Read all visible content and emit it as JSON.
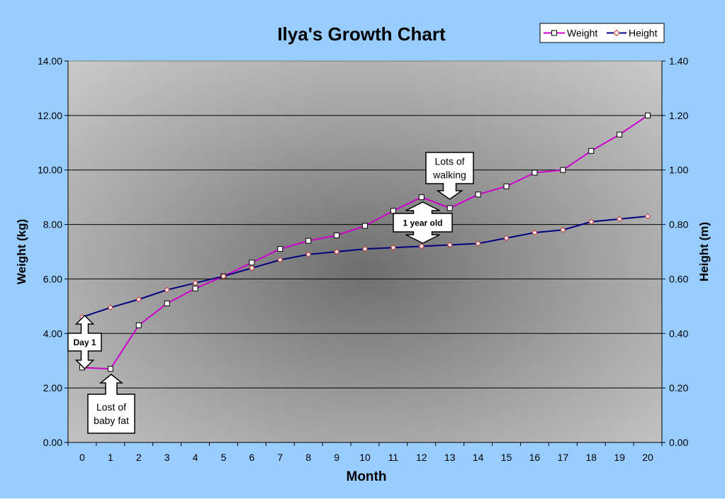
{
  "chart_data": {
    "type": "line",
    "title": "Ilya's Growth Chart",
    "xlabel": "Month",
    "ylabel": "Weight (kg)",
    "y2label": "Height (m)",
    "x": [
      0,
      1,
      2,
      3,
      4,
      5,
      6,
      7,
      8,
      9,
      10,
      11,
      12,
      13,
      14,
      15,
      16,
      17,
      18,
      19,
      20
    ],
    "ylim": [
      0,
      14
    ],
    "y2lim": [
      0,
      1.4
    ],
    "yticks": [
      "0.00",
      "2.00",
      "4.00",
      "6.00",
      "8.00",
      "10.00",
      "12.00",
      "14.00"
    ],
    "y2ticks": [
      "0.00",
      "0.20",
      "0.40",
      "0.60",
      "0.80",
      "1.00",
      "1.20",
      "1.40"
    ],
    "grid": true,
    "legend_position": "top-right",
    "series": [
      {
        "name": "Weight",
        "axis": "left",
        "color": "#cc00cc",
        "marker": "square",
        "values": [
          2.75,
          2.7,
          4.3,
          5.1,
          5.65,
          6.1,
          6.6,
          7.1,
          7.4,
          7.6,
          7.95,
          8.5,
          9.0,
          8.6,
          9.1,
          9.4,
          9.9,
          10.0,
          10.7,
          11.3,
          12.0
        ]
      },
      {
        "name": "Height",
        "axis": "right",
        "color": "#000080",
        "marker": "diamond",
        "values": [
          0.46,
          0.495,
          0.525,
          0.56,
          0.585,
          0.61,
          0.64,
          0.67,
          0.69,
          0.7,
          0.71,
          0.715,
          0.72,
          0.725,
          0.73,
          0.75,
          0.77,
          0.78,
          0.81,
          0.82,
          0.83
        ]
      }
    ],
    "annotations": [
      {
        "id": "day1",
        "lines": [
          "Day 1"
        ]
      },
      {
        "id": "babyfat",
        "lines": [
          "Lost of",
          "baby fat"
        ]
      },
      {
        "id": "walking",
        "lines": [
          "Lots of",
          "walking"
        ]
      },
      {
        "id": "year",
        "lines": [
          "1 year old"
        ]
      }
    ]
  }
}
